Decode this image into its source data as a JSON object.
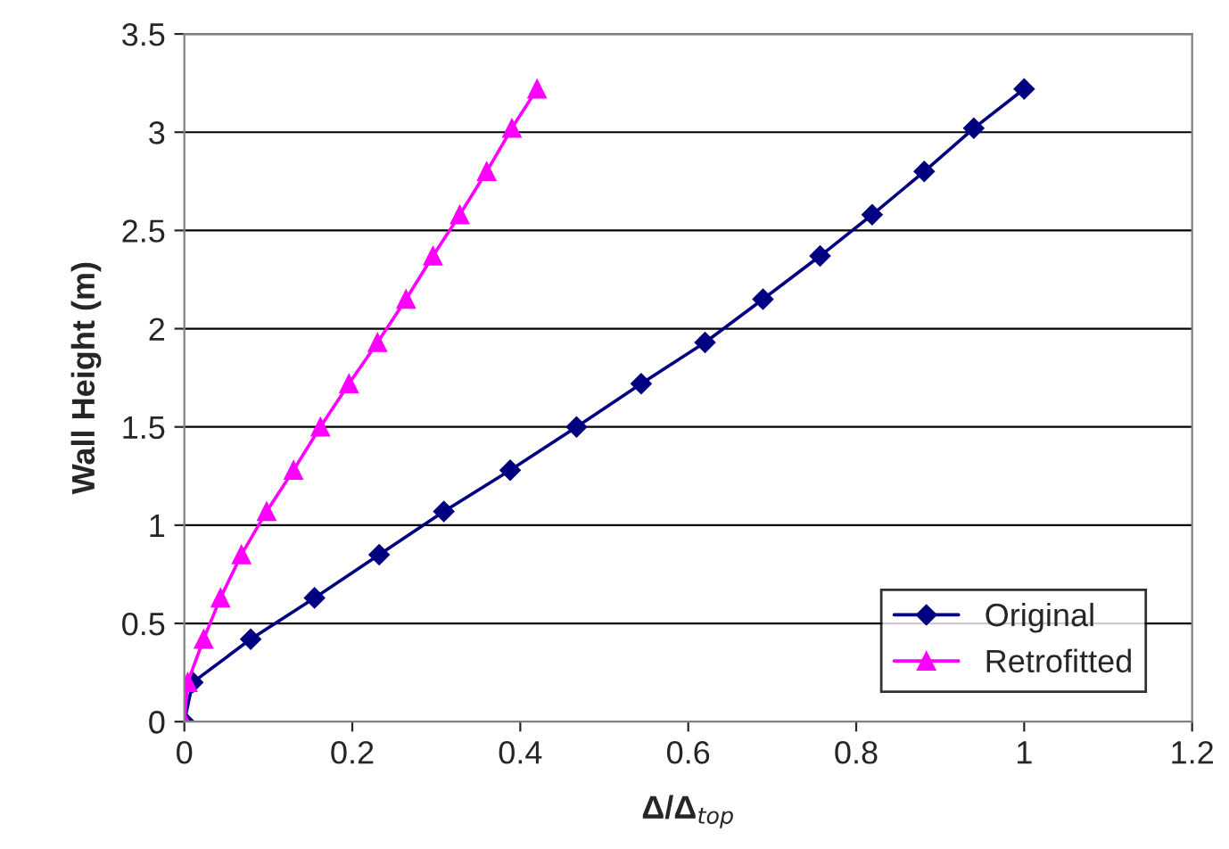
{
  "chart_data": {
    "type": "line",
    "xlabel": "Δ/Δ$_{top}$",
    "ylabel": "Wall Height (m)",
    "series": [
      {
        "name": "Original",
        "color": "#000080",
        "marker": "diamond",
        "x": [
          0,
          0.01,
          0.079,
          0.155,
          0.232,
          0.309,
          0.388,
          0.467,
          0.544,
          0.62,
          0.689,
          0.757,
          0.819,
          0.881,
          0.94,
          1.0
        ],
        "values": [
          0,
          0.2,
          0.42,
          0.63,
          0.85,
          1.07,
          1.28,
          1.5,
          1.72,
          1.93,
          2.15,
          2.37,
          2.58,
          2.8,
          3.02,
          3.22
        ]
      },
      {
        "name": "Retrofitted",
        "color": "#ff00ff",
        "marker": "triangle",
        "x": [
          0,
          0.004,
          0.023,
          0.043,
          0.068,
          0.098,
          0.13,
          0.162,
          0.196,
          0.23,
          0.264,
          0.296,
          0.328,
          0.36,
          0.39,
          0.42
        ],
        "values": [
          0,
          0.2,
          0.42,
          0.63,
          0.85,
          1.07,
          1.28,
          1.5,
          1.72,
          1.93,
          2.15,
          2.37,
          2.58,
          2.8,
          3.02,
          3.22
        ]
      }
    ],
    "xlim": [
      0,
      1.2
    ],
    "xticks": [
      0,
      0.2,
      0.4,
      0.6,
      0.8,
      1,
      1.2
    ],
    "ylim": [
      0,
      3.5
    ],
    "yticks": [
      0,
      0.5,
      1,
      1.5,
      2,
      2.5,
      3,
      3.5
    ],
    "grid": "y",
    "legend": "bottom right",
    "line_style": "solid"
  }
}
